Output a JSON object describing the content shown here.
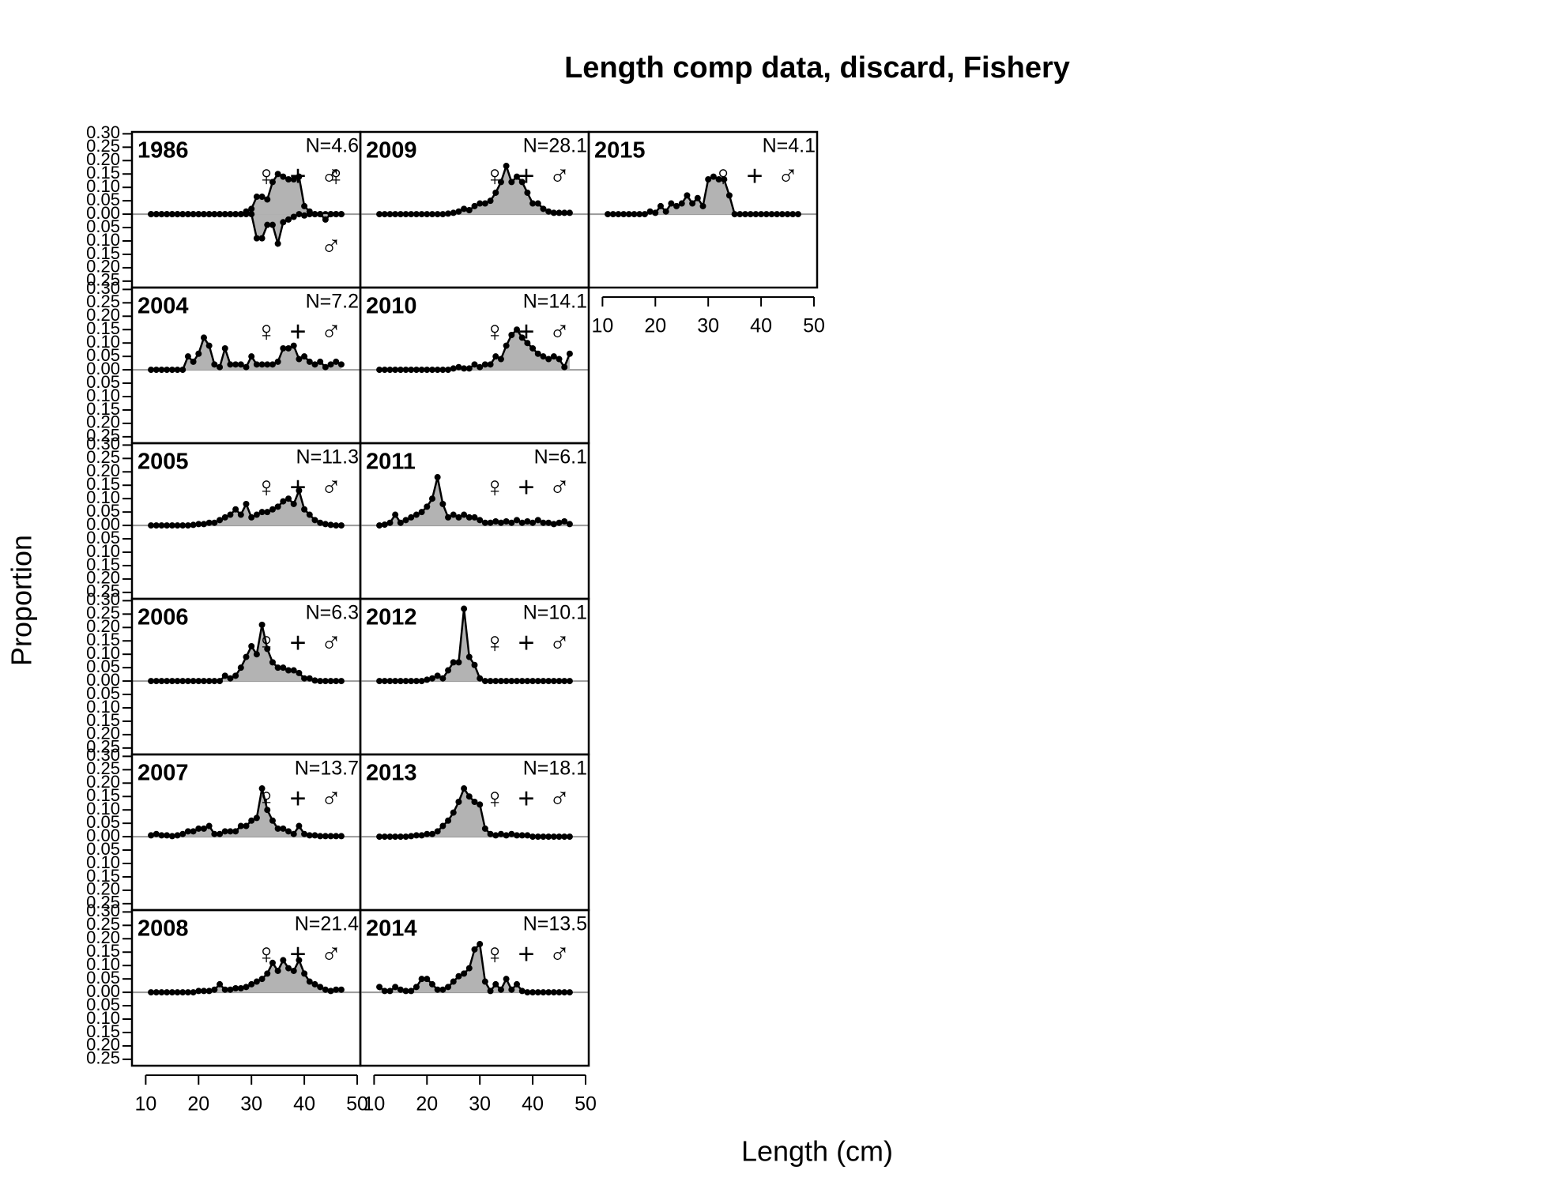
{
  "title": "Length comp data, discard, Fishery",
  "x_label": "Length (cm)",
  "y_label": "Proportion",
  "sex_symbols": [
    "♀",
    "+",
    "♂"
  ],
  "colors": {
    "combined": "#008000",
    "female": "#ff0000",
    "male": "#0000ff",
    "fill": "#b3b3b3"
  },
  "chart_data": {
    "type": "area",
    "x": [
      11,
      12,
      13,
      14,
      15,
      16,
      17,
      18,
      19,
      20,
      21,
      22,
      23,
      24,
      25,
      26,
      27,
      28,
      29,
      30,
      31,
      32,
      33,
      34,
      35,
      36,
      37,
      38,
      39,
      40,
      41,
      42,
      43,
      44,
      45,
      46,
      47
    ],
    "xlim": [
      7.4,
      50.6
    ],
    "xticks": [
      10,
      20,
      30,
      40,
      50
    ],
    "ylim": [
      -0.274,
      0.307
    ],
    "yticks": [
      {
        "value": 0.3,
        "label": "0.30"
      },
      {
        "value": 0.25,
        "label": "0.25"
      },
      {
        "value": 0.2,
        "label": "0.20"
      },
      {
        "value": 0.15,
        "label": "0.15"
      },
      {
        "value": 0.1,
        "label": "0.10"
      },
      {
        "value": 0.05,
        "label": "0.05"
      },
      {
        "value": 0,
        "label": "0.00"
      },
      {
        "value": -0.05,
        "label": "0.05"
      },
      {
        "value": -0.1,
        "label": "0.10"
      },
      {
        "value": -0.15,
        "label": "0.15"
      },
      {
        "value": -0.2,
        "label": "0.20"
      },
      {
        "value": -0.25,
        "label": "0.25"
      }
    ],
    "panels": [
      {
        "year": "1986",
        "n_label": "N=4.6",
        "values": [
          0,
          0,
          0,
          0,
          0,
          0,
          0,
          0,
          0,
          0,
          0,
          0,
          0,
          0,
          0,
          0,
          0,
          0,
          0.01,
          0.02,
          0.065,
          0.065,
          0.055,
          0.12,
          0.15,
          0.14,
          0.13,
          0.13,
          0.14,
          0.03,
          0.01,
          0,
          0,
          0,
          0,
          0,
          0
        ],
        "values_male": [
          0,
          0,
          0,
          0,
          0,
          0,
          0,
          0,
          0,
          0,
          0,
          0,
          0,
          0,
          0,
          0,
          0,
          0,
          0,
          0,
          -0.09,
          -0.09,
          -0.04,
          -0.04,
          -0.11,
          -0.03,
          -0.02,
          -0.01,
          0,
          -0.005,
          0,
          0,
          0,
          -0.02,
          0,
          0,
          0
        ]
      },
      {
        "year": "2004",
        "n_label": "N=7.2",
        "values": [
          0,
          0,
          0,
          0,
          0,
          0,
          0,
          0.05,
          0.03,
          0.06,
          0.12,
          0.09,
          0.02,
          0.01,
          0.08,
          0.02,
          0.02,
          0.02,
          0.01,
          0.05,
          0.02,
          0.02,
          0.02,
          0.02,
          0.03,
          0.08,
          0.08,
          0.09,
          0.04,
          0.05,
          0.03,
          0.02,
          0.03,
          0.01,
          0.02,
          0.03,
          0.02
        ]
      },
      {
        "year": "2005",
        "n_label": "N=11.3",
        "values": [
          0,
          0,
          0,
          0,
          0,
          0,
          0,
          0,
          0.002,
          0.005,
          0.005,
          0.01,
          0.01,
          0.02,
          0.03,
          0.04,
          0.06,
          0.04,
          0.08,
          0.03,
          0.04,
          0.05,
          0.05,
          0.06,
          0.07,
          0.09,
          0.1,
          0.08,
          0.13,
          0.06,
          0.04,
          0.02,
          0.01,
          0.005,
          0.002,
          0,
          0
        ]
      },
      {
        "year": "2006",
        "n_label": "N=6.3",
        "values": [
          0,
          0,
          0,
          0,
          0,
          0,
          0,
          0,
          0,
          0,
          0,
          0,
          0,
          0,
          0.02,
          0.01,
          0.02,
          0.05,
          0.09,
          0.13,
          0.1,
          0.21,
          0.12,
          0.07,
          0.05,
          0.05,
          0.04,
          0.04,
          0.03,
          0.01,
          0.01,
          0.002,
          0,
          0,
          0,
          0,
          0
        ]
      },
      {
        "year": "2007",
        "n_label": "N=13.7",
        "values": [
          0.005,
          0.01,
          0.005,
          0.005,
          0.002,
          0.005,
          0.01,
          0.02,
          0.02,
          0.03,
          0.03,
          0.04,
          0.01,
          0.01,
          0.02,
          0.02,
          0.02,
          0.04,
          0.04,
          0.06,
          0.07,
          0.18,
          0.1,
          0.06,
          0.03,
          0.03,
          0.02,
          0.01,
          0.04,
          0.01,
          0.005,
          0.005,
          0.002,
          0.002,
          0.002,
          0.002,
          0.002
        ]
      },
      {
        "year": "2008",
        "n_label": "N=21.4",
        "values": [
          0,
          0,
          0,
          0,
          0,
          0,
          0,
          0,
          0,
          0.005,
          0.005,
          0.005,
          0.01,
          0.03,
          0.01,
          0.01,
          0.015,
          0.015,
          0.02,
          0.03,
          0.04,
          0.05,
          0.07,
          0.11,
          0.08,
          0.12,
          0.09,
          0.08,
          0.12,
          0.07,
          0.04,
          0.03,
          0.02,
          0.01,
          0.005,
          0.01,
          0.01
        ]
      },
      {
        "year": "2009",
        "n_label": "N=28.1",
        "values": [
          0,
          0,
          0,
          0,
          0,
          0,
          0,
          0,
          0,
          0,
          0,
          0,
          0,
          0.002,
          0.005,
          0.01,
          0.02,
          0.015,
          0.03,
          0.04,
          0.04,
          0.05,
          0.08,
          0.12,
          0.18,
          0.12,
          0.14,
          0.12,
          0.08,
          0.04,
          0.04,
          0.02,
          0.01,
          0.005,
          0.005,
          0.005,
          0.005
        ]
      },
      {
        "year": "2010",
        "n_label": "N=14.1",
        "values": [
          0,
          0,
          0,
          0,
          0,
          0,
          0,
          0,
          0,
          0,
          0,
          0,
          0,
          0,
          0.005,
          0.01,
          0.005,
          0.005,
          0.02,
          0.01,
          0.02,
          0.02,
          0.05,
          0.04,
          0.09,
          0.13,
          0.15,
          0.12,
          0.1,
          0.08,
          0.06,
          0.05,
          0.04,
          0.05,
          0.04,
          0.01,
          0.06
        ]
      },
      {
        "year": "2011",
        "n_label": "N=6.1",
        "values": [
          0,
          0.003,
          0.01,
          0.04,
          0.01,
          0.02,
          0.03,
          0.04,
          0.05,
          0.07,
          0.1,
          0.18,
          0.08,
          0.03,
          0.04,
          0.03,
          0.04,
          0.03,
          0.03,
          0.02,
          0.01,
          0.01,
          0.015,
          0.01,
          0.015,
          0.01,
          0.02,
          0.01,
          0.015,
          0.01,
          0.02,
          0.01,
          0.01,
          0.005,
          0.01,
          0.015,
          0.005
        ]
      },
      {
        "year": "2012",
        "n_label": "N=10.1",
        "values": [
          0,
          0,
          0,
          0,
          0,
          0,
          0,
          0,
          0,
          0.005,
          0.01,
          0.02,
          0.01,
          0.04,
          0.07,
          0.07,
          0.27,
          0.09,
          0.06,
          0.01,
          0,
          0,
          0,
          0,
          0,
          0,
          0,
          0,
          0,
          0,
          0,
          0,
          0,
          0,
          0,
          0,
          0
        ]
      },
      {
        "year": "2013",
        "n_label": "N=18.1",
        "values": [
          0,
          0,
          0,
          0,
          0,
          0,
          0.002,
          0.005,
          0.005,
          0.01,
          0.01,
          0.02,
          0.04,
          0.06,
          0.09,
          0.13,
          0.18,
          0.15,
          0.13,
          0.12,
          0.03,
          0.01,
          0.005,
          0.01,
          0.005,
          0.01,
          0.005,
          0.005,
          0.005,
          0,
          0,
          0,
          0,
          0,
          0,
          0,
          0
        ]
      },
      {
        "year": "2014",
        "n_label": "N=13.5",
        "values": [
          0.02,
          0.005,
          0.005,
          0.02,
          0.01,
          0.005,
          0.005,
          0.02,
          0.05,
          0.05,
          0.03,
          0.01,
          0.01,
          0.02,
          0.04,
          0.06,
          0.07,
          0.09,
          0.16,
          0.18,
          0.04,
          0.005,
          0.03,
          0.01,
          0.05,
          0.01,
          0.03,
          0.005,
          0,
          0,
          0,
          0,
          0,
          0,
          0,
          0,
          0
        ]
      },
      {
        "year": "2015",
        "n_label": "N=4.1",
        "values": [
          0,
          0,
          0,
          0,
          0,
          0,
          0,
          0,
          0.01,
          0.005,
          0.03,
          0.01,
          0.04,
          0.03,
          0.04,
          0.07,
          0.04,
          0.06,
          0.03,
          0.13,
          0.14,
          0.13,
          0.13,
          0.07,
          0,
          0,
          0,
          0,
          0,
          0,
          0,
          0,
          0,
          0,
          0,
          0,
          0
        ]
      }
    ]
  }
}
